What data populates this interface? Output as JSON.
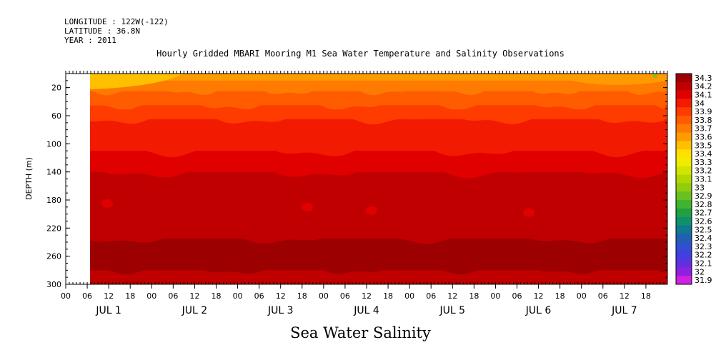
{
  "header": {
    "longitude": "LONGITUDE : 122W(-122)",
    "latitude": "LATITUDE : 36.8N",
    "year": "YEAR : 2011"
  },
  "chart_data": {
    "type": "heatmap",
    "title": "Hourly Gridded MBARI Mooring M1 Sea Water Temperature and Salinity Observations",
    "bottom_title": "Sea Water Salinity",
    "ylabel": "DEPTH (m)",
    "ylim": [
      300,
      0
    ],
    "y_ticks": [
      20,
      60,
      100,
      140,
      180,
      220,
      260,
      300
    ],
    "x_hour_ticks": [
      "00",
      "06",
      "12",
      "18",
      "00",
      "06",
      "12",
      "18",
      "00",
      "06",
      "12",
      "18",
      "00",
      "06",
      "12",
      "18",
      "00",
      "06",
      "12",
      "18",
      "00",
      "06",
      "12",
      "18",
      "00",
      "06",
      "12",
      "18"
    ],
    "x_day_labels": [
      "JUL  1",
      "JUL  2",
      "JUL  3",
      "JUL  4",
      "JUL  5",
      "JUL  6",
      "JUL  7"
    ],
    "data_start": "JUL 1 06:00",
    "colorbar": {
      "levels": [
        31.9,
        32,
        32.1,
        32.2,
        32.3,
        32.4,
        32.5,
        32.6,
        32.7,
        32.8,
        32.9,
        33,
        33.1,
        33.2,
        33.3,
        33.4,
        33.5,
        33.6,
        33.7,
        33.8,
        33.9,
        34,
        34.1,
        34.2,
        34.3
      ],
      "labels": [
        "34.3",
        "34.2",
        "34.1",
        "34",
        "33.9",
        "33.8",
        "33.7",
        "33.6",
        "33.5",
        "33.4",
        "33.3",
        "33.2",
        "33.1",
        "33",
        "32.9",
        "32.8",
        "32.7",
        "32.6",
        "32.5",
        "32.4",
        "32.3",
        "32.2",
        "32.1",
        "32",
        "31.9"
      ],
      "colors": [
        "#9c0000",
        "#c00000",
        "#e00000",
        "#f21a00",
        "#ff3c00",
        "#ff5c00",
        "#ff7a00",
        "#ff9a00",
        "#ffc000",
        "#ffe000",
        "#f0ec00",
        "#d2e400",
        "#b0d800",
        "#90cc10",
        "#6ac020",
        "#40b430",
        "#20a040",
        "#10906a",
        "#107890",
        "#2060b0",
        "#3050d0",
        "#4040e0",
        "#6030e0",
        "#9020e0",
        "#d020e0"
      ]
    },
    "depth_profile": [
      {
        "depth_top": 0,
        "depth_bottom": 10,
        "salinity": 33.6
      },
      {
        "depth_top": 10,
        "depth_bottom": 25,
        "salinity": 33.7
      },
      {
        "depth_top": 25,
        "depth_bottom": 45,
        "salinity": 33.8
      },
      {
        "depth_top": 45,
        "depth_bottom": 65,
        "salinity": 33.9
      },
      {
        "depth_top": 65,
        "depth_bottom": 110,
        "salinity": 34.0
      },
      {
        "depth_top": 110,
        "depth_bottom": 140,
        "salinity": 34.1
      },
      {
        "depth_top": 140,
        "depth_bottom": 210,
        "salinity": 34.2
      },
      {
        "depth_top": 210,
        "depth_bottom": 235,
        "salinity": 34.2
      },
      {
        "depth_top": 235,
        "depth_bottom": 280,
        "salinity": 34.3
      },
      {
        "depth_top": 280,
        "depth_bottom": 300,
        "salinity": 34.2
      }
    ]
  }
}
